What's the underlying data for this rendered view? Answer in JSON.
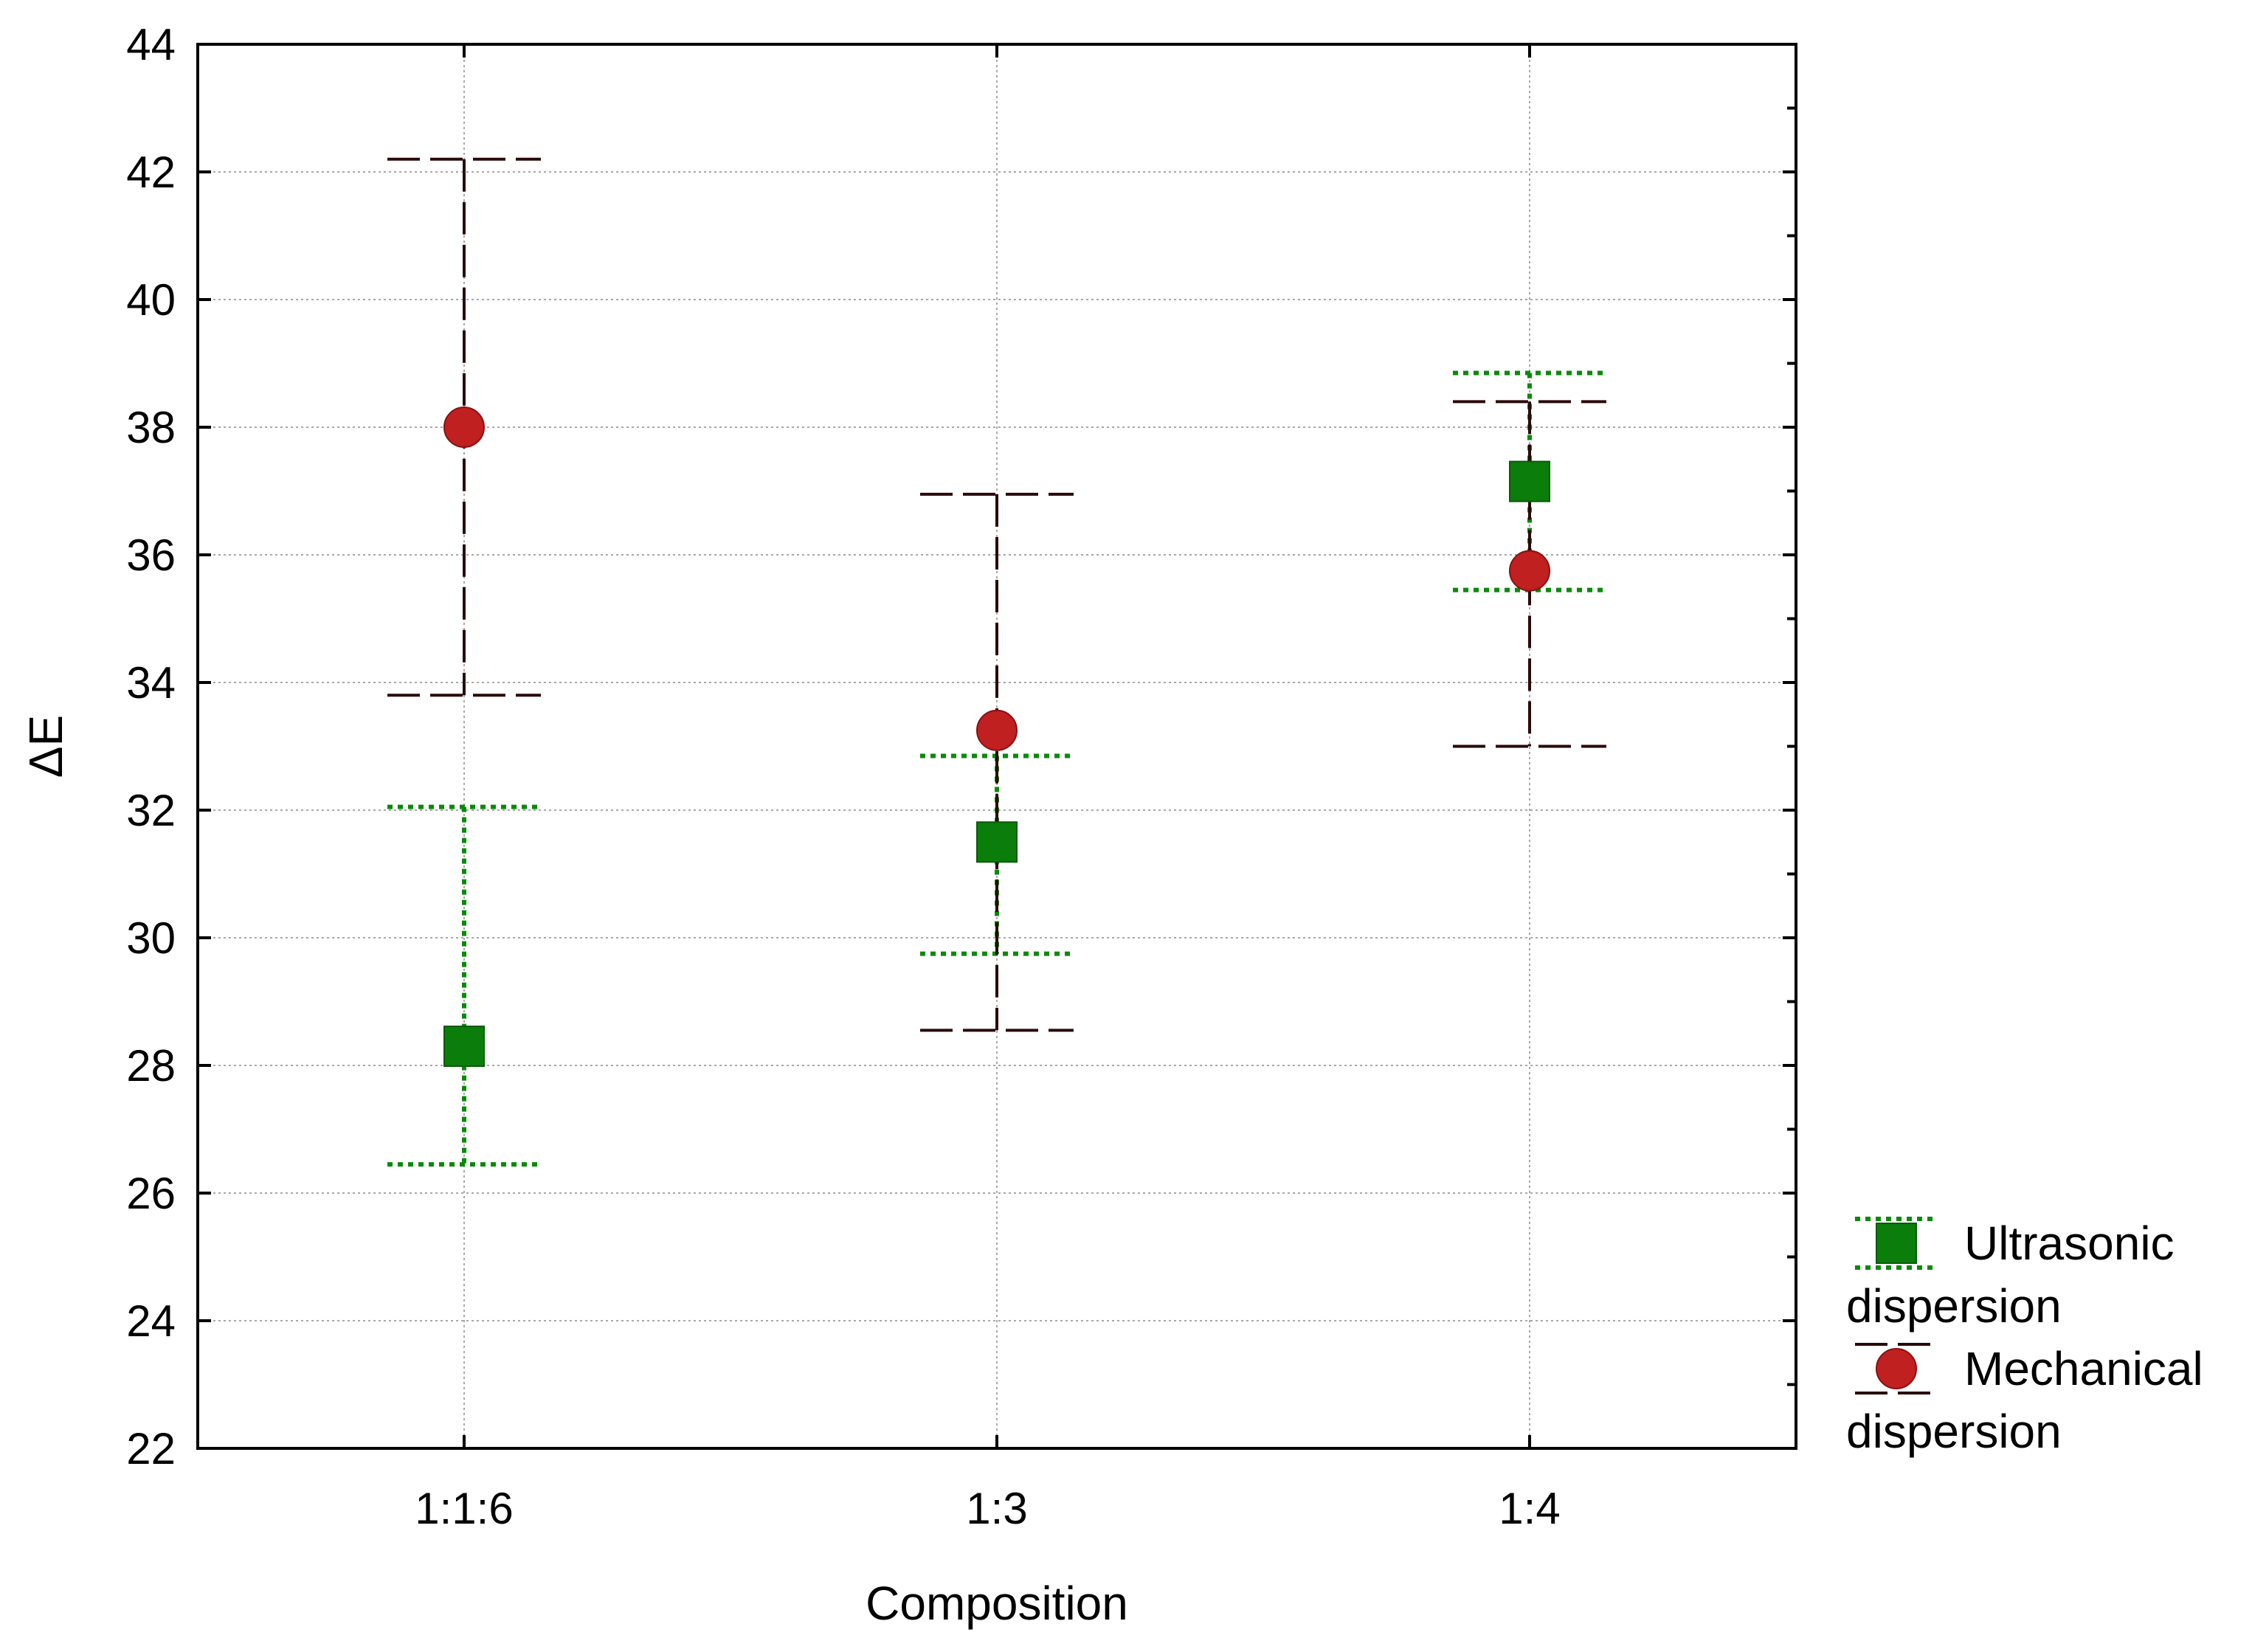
{
  "chart_data": {
    "type": "scatter",
    "title": "",
    "xlabel": "Composition",
    "ylabel": "ΔE",
    "categories": [
      "1:1:6",
      "1:3",
      "1:4"
    ],
    "ylim": [
      22,
      44
    ],
    "yticks": [
      "22",
      "24",
      "26",
      "28",
      "30",
      "32",
      "34",
      "36",
      "38",
      "40",
      "42",
      "44"
    ],
    "grid": true,
    "legend_position": "right-bottom-outside",
    "series": [
      {
        "name": "Ultrasonic dispersion",
        "legend_lines": [
          "Ultrasonic",
          "dispersion"
        ],
        "marker": "square",
        "color": "#0a7d0a",
        "error_color": "#0a8a0a",
        "error_style": "dotted",
        "values": [
          28.3,
          31.5,
          37.15
        ],
        "err_low": [
          26.45,
          29.75,
          35.45
        ],
        "err_high": [
          32.05,
          32.85,
          38.85
        ]
      },
      {
        "name": "Mechanical dispersion",
        "legend_lines": [
          "Mechanical",
          "dispersion"
        ],
        "marker": "circle",
        "color": "#c02020",
        "error_color": "#2a0a0a",
        "error_style": "dashed",
        "values": [
          38.0,
          33.25,
          35.75
        ],
        "err_low": [
          33.8,
          28.55,
          33.0
        ],
        "err_high": [
          42.2,
          36.95,
          38.4
        ]
      }
    ]
  }
}
